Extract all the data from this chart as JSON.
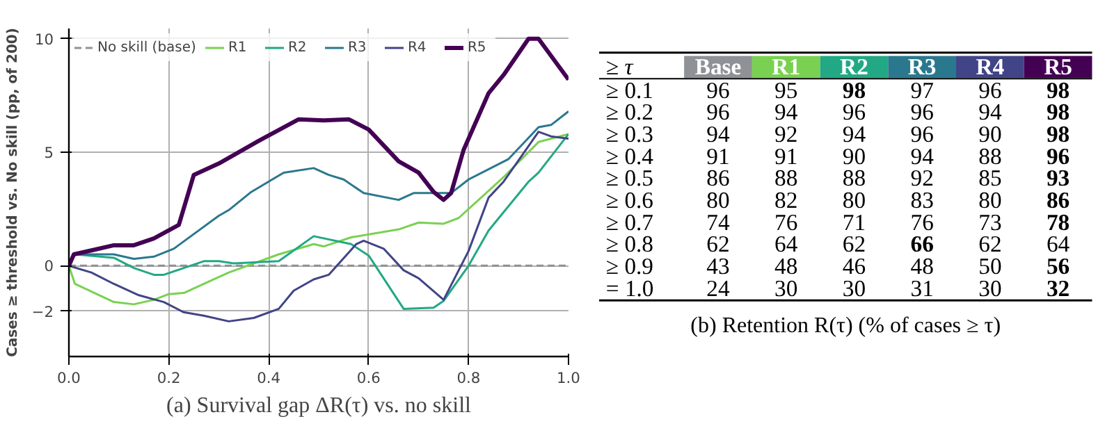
{
  "chart_data": [
    {
      "type": "line",
      "ylabel": "Cases ≥ threshold vs. No skill (pp, of 200)",
      "xlim": [
        0,
        1
      ],
      "ylim": [
        -4,
        10.45
      ],
      "xticks": [
        {
          "value": 0,
          "label": "0.0"
        },
        {
          "value": 0.2,
          "label": "0.2"
        },
        {
          "value": 0.4,
          "label": "0.4"
        },
        {
          "value": 0.6,
          "label": "0.6"
        },
        {
          "value": 0.8,
          "label": "0.8"
        },
        {
          "value": 1,
          "label": "1.0"
        }
      ],
      "yticks": [
        {
          "value": -2,
          "label": "−2"
        },
        0,
        5,
        10
      ],
      "grid": true,
      "legend": "top left",
      "annotations": [
        "(a) Survival gap ΔR(τ) vs. no skill"
      ],
      "series": [
        {
          "name": "No skill (base)",
          "color": "#8e9196",
          "line_style": "dashed",
          "x": [
            0,
            1
          ],
          "values": [
            0,
            0
          ]
        },
        {
          "name": "R1",
          "color": "#7ad151",
          "line_style": "solid",
          "x": [
            0,
            0.012,
            0.09,
            0.13,
            0.17,
            0.2,
            0.23,
            0.3,
            0.32,
            0.42,
            0.49,
            0.51,
            0.565,
            0.66,
            0.7,
            0.75,
            0.78,
            0.825,
            0.87,
            0.94,
            1.0
          ],
          "values": [
            0,
            -0.8,
            -1.6,
            -1.7,
            -1.5,
            -1.25,
            -1.2,
            -0.5,
            -0.3,
            0.5,
            0.95,
            0.85,
            1.25,
            1.6,
            1.9,
            1.85,
            2.1,
            3.0,
            3.9,
            5.45,
            5.8
          ]
        },
        {
          "name": "R2",
          "color": "#22a884",
          "line_style": "solid",
          "x": [
            0,
            0.012,
            0.09,
            0.13,
            0.17,
            0.19,
            0.23,
            0.27,
            0.3,
            0.33,
            0.42,
            0.49,
            0.565,
            0.6,
            0.67,
            0.73,
            0.75,
            0.8,
            0.84,
            0.92,
            0.94,
            1.0
          ],
          "values": [
            0,
            0.5,
            0.35,
            -0.1,
            -0.4,
            -0.4,
            -0.1,
            0.2,
            0.2,
            0.1,
            0.2,
            1.3,
            0.95,
            0.45,
            -1.9,
            -1.85,
            -1.55,
            0.0,
            1.55,
            3.7,
            4.1,
            5.8
          ]
        },
        {
          "name": "R3",
          "color": "#2a788e",
          "line_style": "solid",
          "x": [
            0,
            0.012,
            0.09,
            0.13,
            0.17,
            0.21,
            0.3,
            0.32,
            0.365,
            0.43,
            0.49,
            0.52,
            0.55,
            0.59,
            0.66,
            0.69,
            0.73,
            0.765,
            0.8,
            0.88,
            0.94,
            0.965,
            1.0
          ],
          "values": [
            0,
            0.5,
            0.5,
            0.3,
            0.4,
            0.75,
            2.2,
            2.45,
            3.25,
            4.1,
            4.3,
            4.0,
            3.8,
            3.2,
            2.9,
            3.2,
            3.2,
            3.2,
            3.8,
            4.7,
            6.1,
            6.2,
            6.8
          ]
        },
        {
          "name": "R4",
          "color": "#414487",
          "line_style": "solid",
          "x": [
            0,
            0.045,
            0.09,
            0.14,
            0.19,
            0.23,
            0.27,
            0.32,
            0.37,
            0.42,
            0.45,
            0.49,
            0.52,
            0.575,
            0.59,
            0.63,
            0.67,
            0.7,
            0.75,
            0.8,
            0.84,
            0.87,
            0.94,
            0.965,
            1.0
          ],
          "values": [
            0,
            -0.3,
            -0.8,
            -1.3,
            -1.6,
            -2.05,
            -2.2,
            -2.45,
            -2.3,
            -1.9,
            -1.1,
            -0.6,
            -0.4,
            0.95,
            1.1,
            0.75,
            -0.2,
            -0.55,
            -1.5,
            0.65,
            3.0,
            3.7,
            5.9,
            5.7,
            5.6
          ]
        },
        {
          "name": "R5",
          "color": "#440154",
          "line_style": "solid",
          "x": [
            0,
            0.01,
            0.05,
            0.09,
            0.13,
            0.17,
            0.22,
            0.25,
            0.3,
            0.38,
            0.46,
            0.51,
            0.56,
            0.6,
            0.66,
            0.7,
            0.73,
            0.75,
            0.765,
            0.79,
            0.84,
            0.87,
            0.92,
            0.94,
            1.0
          ],
          "values": [
            0,
            0.5,
            0.7,
            0.9,
            0.9,
            1.2,
            1.8,
            4.0,
            4.5,
            5.5,
            6.45,
            6.4,
            6.45,
            6.0,
            4.6,
            4.1,
            3.25,
            2.9,
            3.2,
            5.1,
            7.6,
            8.4,
            10,
            10,
            8.2
          ]
        }
      ]
    },
    {
      "type": "heatmap",
      "data_labels": true,
      "ylabel": "≥ τ",
      "categories": [
        "Base",
        "R1",
        "R2",
        "R3",
        "R4",
        "R5"
      ],
      "colors": [
        "#8e9196",
        "#7ad151",
        "#22a884",
        "#2a788e",
        "#414487",
        "#440154"
      ],
      "y_categories": [
        "≥ 0.1",
        "≥ 0.2",
        "≥ 0.3",
        "≥ 0.4",
        "≥ 0.5",
        "≥ 0.6",
        "≥ 0.7",
        "≥ 0.8",
        "≥ 0.9",
        "= 1.0"
      ],
      "annotations": [
        "(b) Retention R(τ) (% of cases ≥ τ)"
      ],
      "cells": [
        [
          96,
          95,
          98,
          97,
          96,
          98
        ],
        [
          96,
          94,
          96,
          96,
          94,
          98
        ],
        [
          94,
          92,
          94,
          96,
          90,
          98
        ],
        [
          91,
          91,
          90,
          94,
          88,
          96
        ],
        [
          86,
          88,
          88,
          92,
          85,
          93
        ],
        [
          80,
          82,
          80,
          83,
          80,
          86
        ],
        [
          74,
          76,
          71,
          76,
          73,
          78
        ],
        [
          62,
          64,
          62,
          66,
          62,
          64
        ],
        [
          43,
          48,
          46,
          48,
          50,
          56
        ],
        [
          24,
          30,
          30,
          31,
          30,
          32
        ]
      ]
    }
  ]
}
